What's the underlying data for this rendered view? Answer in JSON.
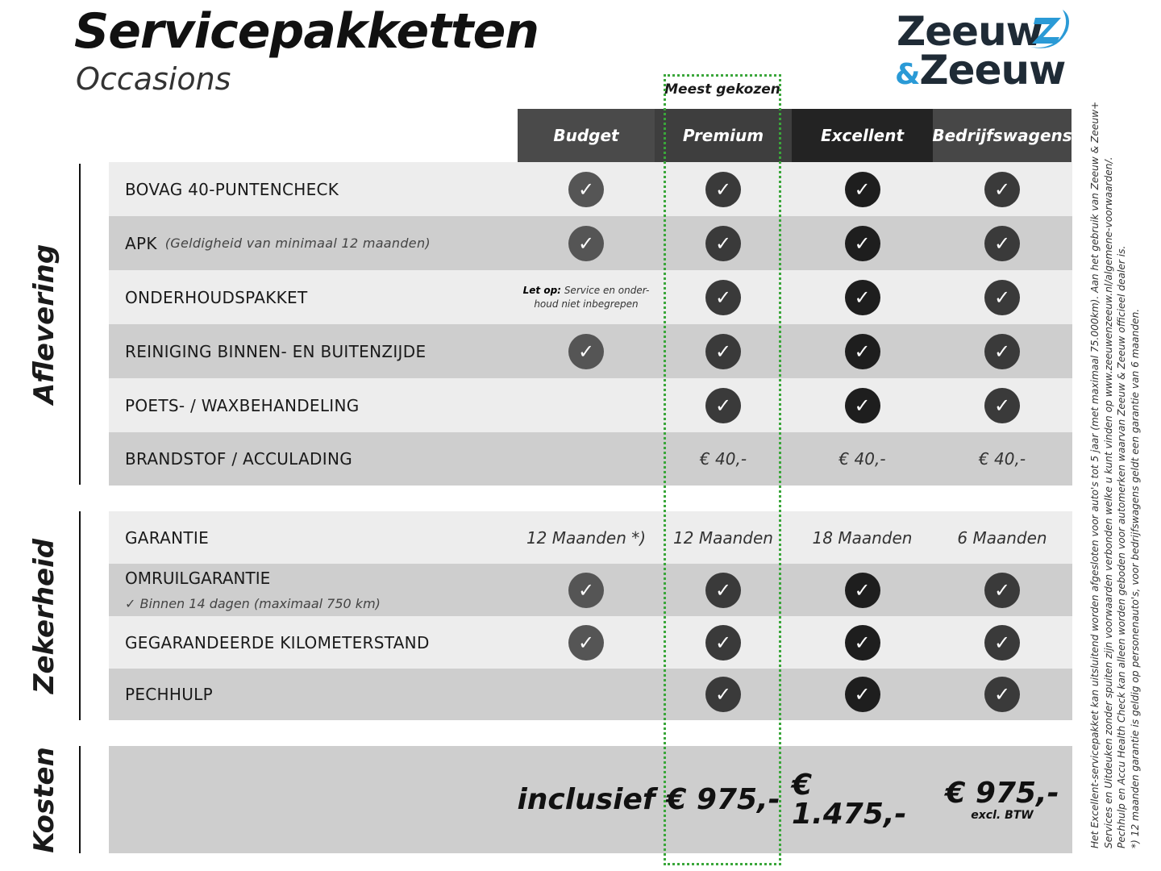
{
  "header": {
    "title": "Servicepakketten",
    "subtitle": "Occasions"
  },
  "logo": {
    "line1": "Zeeuw",
    "amp": "&",
    "line2": "Zeeuw",
    "brand_blue": "#2a9ad6",
    "brand_dark": "#1f2b36"
  },
  "highlight": {
    "label": "Meest gekozen",
    "color": "#3aa63a"
  },
  "columns": [
    {
      "label": "Budget",
      "header_color": "#4a4a4a",
      "check_color": "#555555"
    },
    {
      "label": "Premium",
      "header_color": "#3e3e3e",
      "check_color": "#3a3a3a"
    },
    {
      "label": "Excellent",
      "header_color": "#232323",
      "check_color": "#1e1e1e"
    },
    {
      "label": "Bedrijfswagens",
      "header_color": "#474747",
      "check_color": "#3a3a3a"
    }
  ],
  "sections": [
    {
      "name": "Aflevering",
      "rows": [
        {
          "label": "BOVAG 40-PUNTENCHECK",
          "cells": [
            "check",
            "check",
            "check",
            "check"
          ]
        },
        {
          "label": "APK",
          "sub": "(Geldigheid van minimaal 12 maanden)",
          "cells": [
            "check",
            "check",
            "check",
            "check"
          ]
        },
        {
          "label": "ONDERHOUDSPAKKET",
          "note": {
            "bold": "Let op:",
            "text": "Service en onder-",
            "text2": "houd niet inbegrepen"
          },
          "cells": [
            "note",
            "check",
            "check",
            "check"
          ]
        },
        {
          "label": "REINIGING BINNEN- EN BUITENZIJDE",
          "cells": [
            "check",
            "check",
            "check",
            "check"
          ]
        },
        {
          "label": "POETS- / WAXBEHANDELING",
          "cells": [
            "",
            "check",
            "check",
            "check"
          ]
        },
        {
          "label": "BRANDSTOF / ACCULADING",
          "cells": [
            "",
            "€ 40,-",
            "€ 40,-",
            "€ 40,-"
          ]
        }
      ]
    },
    {
      "name": "Zekerheid",
      "rows": [
        {
          "label": "GARANTIE",
          "cells": [
            "12 Maanden *)",
            "12 Maanden",
            "18 Maanden",
            "6 Maanden"
          ]
        },
        {
          "label": "OMRUILGARANTIE",
          "sub2": "✓    Binnen 14 dagen (maximaal 750 km)",
          "cells": [
            "check",
            "check",
            "check",
            "check"
          ]
        },
        {
          "label": "GEGARANDEERDE KILOMETERSTAND",
          "cells": [
            "check",
            "check",
            "check",
            "check"
          ]
        },
        {
          "label": "PECHHULP",
          "cells": [
            "",
            "check",
            "check",
            "check"
          ]
        }
      ]
    },
    {
      "name": "Kosten",
      "prices": [
        "inclusief",
        "€ 975,-",
        "€ 1.475,-",
        "€ 975,-"
      ],
      "price_note": "excl. BTW"
    }
  ],
  "footnotes": [
    "Het Excellent-servicepakket kan uitsluitend worden afgesloten voor auto's tot 5 jaar (met maximaal 75.000km). Aan het gebruik van Zeeuw & Zeeuw+",
    "Services en Uitdeuken zonder spuiten zijn voorwaarden verbonden welke u kunt vinden op www.zeeuwenzeeuw.nl/algemene-voorwaarden/.",
    "Pechhulp en Accu Health Check kan alleen worden geboden voor automerken waarvan Zeeuw & Zeeuw officieel dealer is.",
    "*) 12 maanden garantie is geldig op personenauto's, voor bedrijfswagens geldt een garantie van 6 maanden."
  ]
}
